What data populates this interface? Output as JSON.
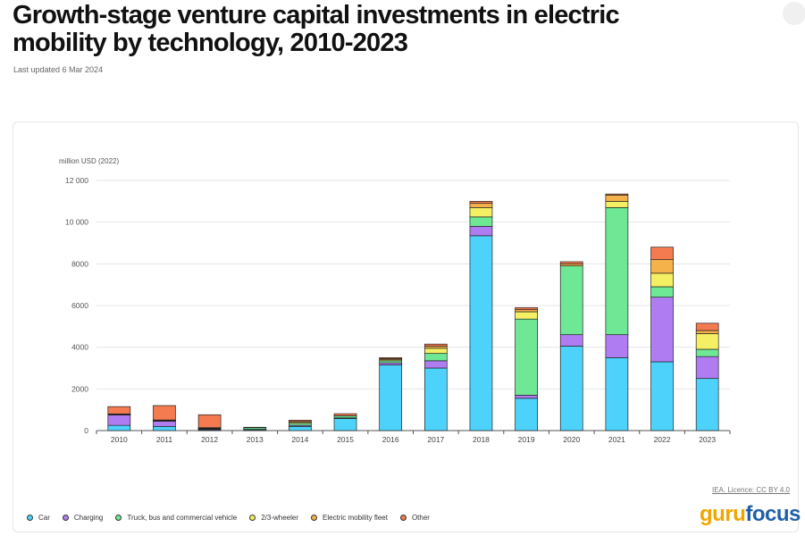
{
  "header": {
    "title": "Growth-stage venture capital investments in electric mobility by technology, 2010-2023",
    "updated": "Last updated 6 Mar 2024"
  },
  "source": {
    "licence": "IEA. Licence: CC BY 4.0"
  },
  "brand": {
    "part1": "guru",
    "part2": "focus"
  },
  "chart_data": {
    "type": "bar",
    "stacked": true,
    "title": "Growth-stage venture capital investments in electric mobility by technology, 2010-2023",
    "ylabel": "million USD (2022)",
    "xlabel": "",
    "ylim": [
      0,
      12000
    ],
    "yticks": [
      0,
      2000,
      4000,
      6000,
      8000,
      10000,
      12000
    ],
    "ytick_labels": [
      "0",
      "2000",
      "4000",
      "6000",
      "8000",
      "10 000",
      "12 000"
    ],
    "grid": true,
    "legend_position": "bottom-left",
    "categories": [
      "2010",
      "2011",
      "2012",
      "2013",
      "2014",
      "2015",
      "2016",
      "2017",
      "2018",
      "2019",
      "2020",
      "2021",
      "2022",
      "2023"
    ],
    "series": [
      {
        "name": "Car",
        "color": "#4dd3fb",
        "values": [
          250,
          200,
          40,
          40,
          200,
          580,
          3150,
          3000,
          9350,
          1550,
          4050,
          3500,
          3300,
          2500
        ]
      },
      {
        "name": "Charging",
        "color": "#b07cf2",
        "values": [
          500,
          250,
          30,
          20,
          50,
          30,
          100,
          350,
          450,
          150,
          550,
          1100,
          3100,
          1050
        ]
      },
      {
        "name": "Truck, bus and commercial vehicle",
        "color": "#6ee895",
        "values": [
          20,
          20,
          30,
          80,
          100,
          100,
          100,
          350,
          450,
          3650,
          3300,
          6100,
          500,
          350
        ]
      },
      {
        "name": "2/3-wheeler",
        "color": "#f5ef63",
        "values": [
          20,
          30,
          30,
          0,
          70,
          0,
          50,
          250,
          450,
          350,
          0,
          300,
          650,
          750
        ]
      },
      {
        "name": "Electric mobility fleet",
        "color": "#f5b24a",
        "values": [
          10,
          10,
          10,
          0,
          10,
          0,
          50,
          100,
          200,
          100,
          100,
          300,
          650,
          150
        ]
      },
      {
        "name": "Other",
        "color": "#f47a4f",
        "values": [
          350,
          690,
          620,
          20,
          70,
          100,
          50,
          100,
          100,
          100,
          100,
          50,
          600,
          350
        ]
      }
    ]
  }
}
